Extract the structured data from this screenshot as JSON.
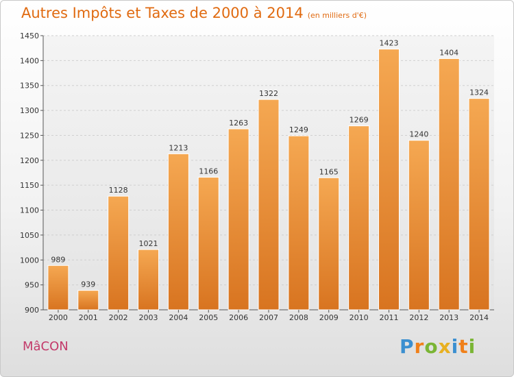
{
  "chart_data": {
    "type": "bar",
    "title": "Autres Impôts et Taxes de 2000 à 2014",
    "units": "(en milliers d'€)",
    "categories": [
      "2000",
      "2001",
      "2002",
      "2003",
      "2004",
      "2005",
      "2006",
      "2007",
      "2008",
      "2009",
      "2010",
      "2011",
      "2012",
      "2013",
      "2014"
    ],
    "values": [
      989,
      939,
      1128,
      1021,
      1213,
      1166,
      1263,
      1322,
      1249,
      1165,
      1269,
      1423,
      1240,
      1404,
      1324
    ],
    "ylim": [
      900,
      1450
    ],
    "yticks": [
      900,
      950,
      1000,
      1050,
      1100,
      1150,
      1200,
      1250,
      1300,
      1350,
      1400,
      1450
    ],
    "xlabel": "",
    "ylabel": "",
    "grid": true,
    "bar_color": "#f0a040"
  },
  "city": "MâCON",
  "logo": {
    "letters": [
      "P",
      "r",
      "o",
      "x",
      "i",
      "t",
      "i"
    ],
    "colors": [
      "#3b8fd0",
      "#f0801a",
      "#7ab534",
      "#e8b020",
      "#3b8fd0",
      "#f0801a",
      "#7ab534"
    ]
  }
}
